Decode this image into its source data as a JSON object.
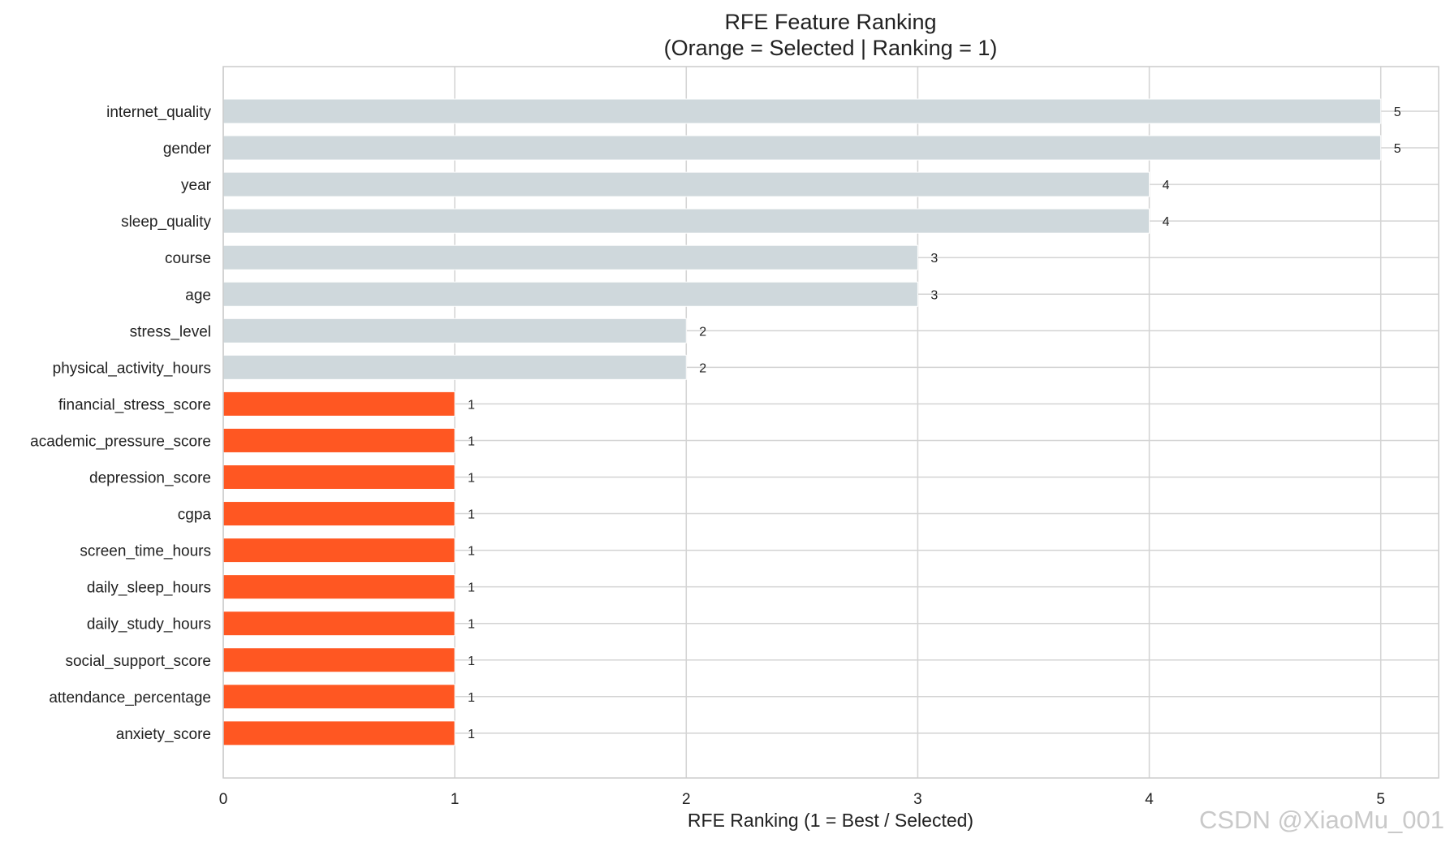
{
  "chart_data": {
    "type": "bar",
    "orientation": "horizontal",
    "title_line1": "RFE Feature Ranking",
    "title_line2": "(Orange = Selected  |  Ranking = 1)",
    "xlabel": "RFE Ranking  (1 = Best / Selected)",
    "ylabel": "",
    "xlim": [
      0,
      5.25
    ],
    "xticks": [
      0,
      1,
      2,
      3,
      4,
      5
    ],
    "grid": true,
    "categories": [
      "internet_quality",
      "gender",
      "year",
      "sleep_quality",
      "course",
      "age",
      "stress_level",
      "physical_activity_hours",
      "financial_stress_score",
      "academic_pressure_score",
      "depression_score",
      "cgpa",
      "screen_time_hours",
      "daily_sleep_hours",
      "daily_study_hours",
      "social_support_score",
      "attendance_percentage",
      "anxiety_score"
    ],
    "values": [
      5,
      5,
      4,
      4,
      3,
      3,
      2,
      2,
      1,
      1,
      1,
      1,
      1,
      1,
      1,
      1,
      1,
      1
    ],
    "value_labels": [
      "5",
      "5",
      "4",
      "4",
      "3",
      "3",
      "2",
      "2",
      "1",
      "1",
      "1",
      "1",
      "1",
      "1",
      "1",
      "1",
      "1",
      "1"
    ],
    "colors": {
      "selected": "#ff5722",
      "not_selected": "#cfd8dc",
      "grid": "#d3d3d3",
      "frame": "#cccccc"
    }
  },
  "watermark": "CSDN @XiaoMu_001"
}
